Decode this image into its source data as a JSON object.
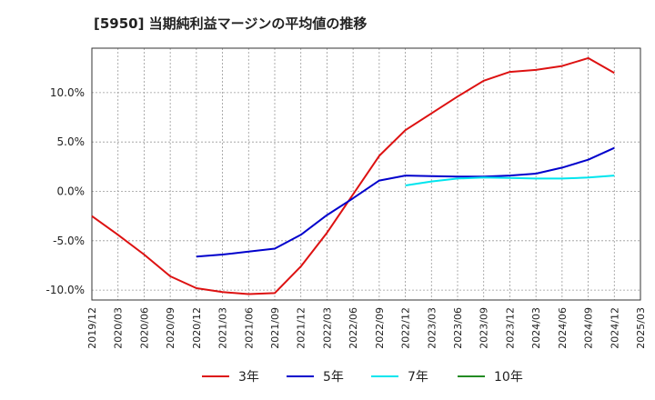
{
  "chart_data": {
    "type": "line",
    "title": "[5950]  当期純利益マージンの平均値の推移",
    "xlabel": "",
    "ylabel": "",
    "ylim": [
      -11.0,
      14.5
    ],
    "grid": true,
    "legend_position": "bottom",
    "y_ticks": [
      {
        "value": 10,
        "label": "10.0%"
      },
      {
        "value": 5,
        "label": "5.0%"
      },
      {
        "value": 0,
        "label": "0.0%"
      },
      {
        "value": -5,
        "label": "-5.0%"
      },
      {
        "value": -10,
        "label": "-10.0%"
      }
    ],
    "x_ticks": [
      "2019/12",
      "2020/03",
      "2020/06",
      "2020/09",
      "2020/12",
      "2021/03",
      "2021/06",
      "2021/09",
      "2021/12",
      "2022/03",
      "2022/06",
      "2022/09",
      "2022/12",
      "2023/03",
      "2023/06",
      "2023/09",
      "2023/12",
      "2024/03",
      "2024/06",
      "2024/09",
      "2024/12",
      "2025/03"
    ],
    "series": [
      {
        "name": "3年",
        "color": "#dd1111",
        "start_index": 0,
        "values": [
          -2.5,
          -4.4,
          -6.4,
          -8.6,
          -9.8,
          -10.2,
          -10.4,
          -10.3,
          -7.6,
          -4.2,
          -0.3,
          3.6,
          6.2,
          7.9,
          9.6,
          11.2,
          12.1,
          12.3,
          12.7,
          13.5,
          12.0
        ]
      },
      {
        "name": "5年",
        "color": "#0000cc",
        "start_index": 4,
        "values": [
          -6.6,
          -6.4,
          -6.1,
          -5.8,
          -4.4,
          -2.4,
          -0.7,
          1.1,
          1.6,
          1.55,
          1.5,
          1.5,
          1.6,
          1.8,
          2.4,
          3.2,
          4.4
        ]
      },
      {
        "name": "7年",
        "color": "#00e5ee",
        "start_index": 12,
        "values": [
          0.6,
          1.0,
          1.3,
          1.4,
          1.35,
          1.3,
          1.3,
          1.4,
          1.6
        ]
      },
      {
        "name": "10年",
        "color": "#228b22",
        "start_index": 0,
        "values": []
      }
    ]
  }
}
